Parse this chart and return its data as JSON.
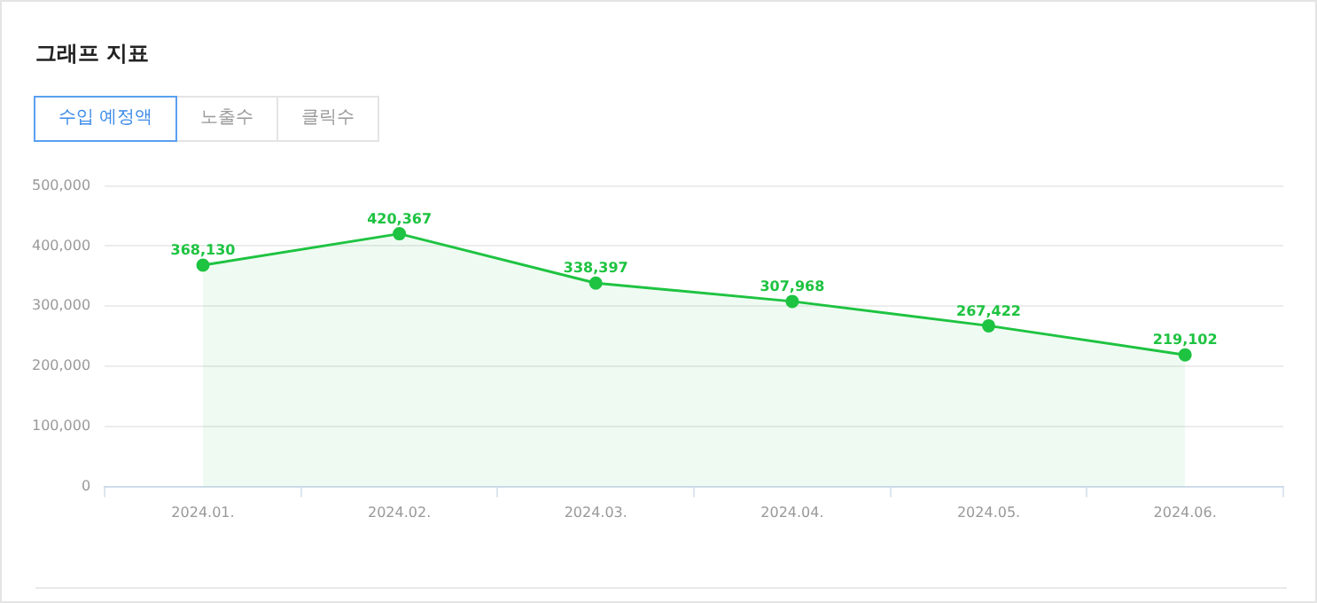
{
  "chart_data": {
    "type": "area",
    "title": "그래프 지표",
    "annotations": [
      "수입 예정액",
      "노출수",
      "클릭수"
    ],
    "categories": [
      "2024.01.",
      "2024.02.",
      "2024.03.",
      "2024.04.",
      "2024.05.",
      "2024.06."
    ],
    "series": [
      {
        "color": "#1ec341",
        "values": [
          368130,
          420367,
          338397,
          307968,
          267422,
          219102
        ],
        "value_labels": [
          "368,130",
          "420,367",
          "338,397",
          "307,968",
          "267,422",
          "219,102"
        ]
      }
    ],
    "ylim": [
      0,
      500000
    ],
    "yticks": [
      0,
      {
        "value": 100000,
        "label": "100,000"
      },
      {
        "value": 200000,
        "label": "200,000"
      },
      {
        "value": 300000,
        "label": "300,000"
      },
      {
        "value": 400000,
        "label": "400,000"
      },
      {
        "value": 500000,
        "label": "500,000"
      }
    ],
    "grid": "y",
    "marker": "circle",
    "legend": false
  }
}
